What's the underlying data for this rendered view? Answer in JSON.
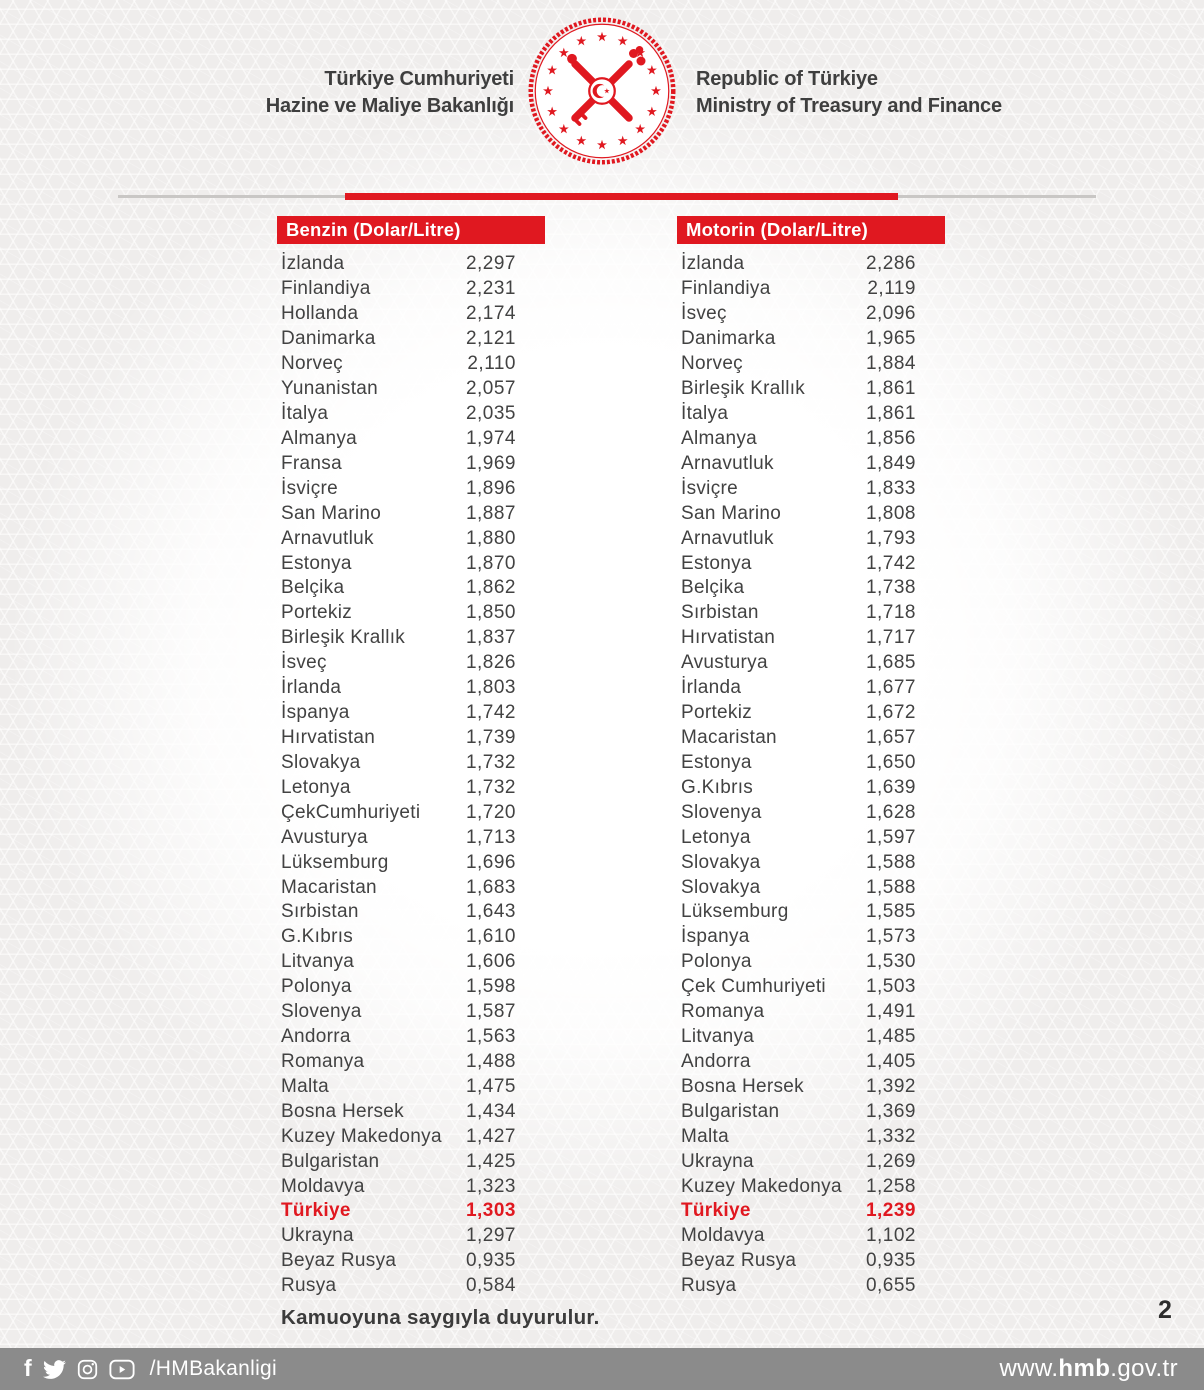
{
  "header": {
    "org_tr_line1": "Türkiye Cumhuriyeti",
    "org_tr_line2": "Hazine ve Maliye Bakanlığı",
    "org_en_line1": "Republic of Türkiye",
    "org_en_line2": "Ministry of Treasury and Finance",
    "emblem_icon": "ministry-emblem-icon"
  },
  "colors": {
    "accent_red": "#e01820",
    "footer_gray": "#8b8b8b",
    "text_dark": "#3e3e3e"
  },
  "tables": {
    "benzin": {
      "title": "Benzin (Dolar/Litre)",
      "rows": [
        {
          "country": "İzlanda",
          "value": "2,297",
          "highlight": false
        },
        {
          "country": "Finlandiya",
          "value": "2,231",
          "highlight": false
        },
        {
          "country": "Hollanda",
          "value": "2,174",
          "highlight": false
        },
        {
          "country": "Danimarka",
          "value": "2,121",
          "highlight": false
        },
        {
          "country": "Norveç",
          "value": "2,110",
          "highlight": false
        },
        {
          "country": "Yunanistan",
          "value": "2,057",
          "highlight": false
        },
        {
          "country": "İtalya",
          "value": "2,035",
          "highlight": false
        },
        {
          "country": "Almanya",
          "value": "1,974",
          "highlight": false
        },
        {
          "country": "Fransa",
          "value": "1,969",
          "highlight": false
        },
        {
          "country": "İsviçre",
          "value": "1,896",
          "highlight": false
        },
        {
          "country": "San Marino",
          "value": "1,887",
          "highlight": false
        },
        {
          "country": "Arnavutluk",
          "value": "1,880",
          "highlight": false
        },
        {
          "country": "Estonya",
          "value": "1,870",
          "highlight": false
        },
        {
          "country": "Belçika",
          "value": "1,862",
          "highlight": false
        },
        {
          "country": "Portekiz",
          "value": "1,850",
          "highlight": false
        },
        {
          "country": "Birleşik Krallık",
          "value": "1,837",
          "highlight": false
        },
        {
          "country": "İsveç",
          "value": "1,826",
          "highlight": false
        },
        {
          "country": "İrlanda",
          "value": "1,803",
          "highlight": false
        },
        {
          "country": "İspanya",
          "value": "1,742",
          "highlight": false
        },
        {
          "country": "Hırvatistan",
          "value": "1,739",
          "highlight": false
        },
        {
          "country": "Slovakya",
          "value": "1,732",
          "highlight": false
        },
        {
          "country": "Letonya",
          "value": "1,732",
          "highlight": false
        },
        {
          "country": "ÇekCumhuriyeti",
          "value": "1,720",
          "highlight": false
        },
        {
          "country": "Avusturya",
          "value": "1,713",
          "highlight": false
        },
        {
          "country": "Lüksemburg",
          "value": "1,696",
          "highlight": false
        },
        {
          "country": "Macaristan",
          "value": "1,683",
          "highlight": false
        },
        {
          "country": "Sırbistan",
          "value": "1,643",
          "highlight": false
        },
        {
          "country": "G.Kıbrıs",
          "value": "1,610",
          "highlight": false
        },
        {
          "country": "Litvanya",
          "value": "1,606",
          "highlight": false
        },
        {
          "country": "Polonya",
          "value": "1,598",
          "highlight": false
        },
        {
          "country": "Slovenya",
          "value": "1,587",
          "highlight": false
        },
        {
          "country": "Andorra",
          "value": "1,563",
          "highlight": false
        },
        {
          "country": "Romanya",
          "value": "1,488",
          "highlight": false
        },
        {
          "country": "Malta",
          "value": "1,475",
          "highlight": false
        },
        {
          "country": "Bosna Hersek",
          "value": "1,434",
          "highlight": false
        },
        {
          "country": "Kuzey Makedonya",
          "value": "1,427",
          "highlight": false
        },
        {
          "country": "Bulgaristan",
          "value": "1,425",
          "highlight": false
        },
        {
          "country": "Moldavya",
          "value": "1,323",
          "highlight": false
        },
        {
          "country": "Türkiye",
          "value": "1,303",
          "highlight": true
        },
        {
          "country": "Ukrayna",
          "value": "1,297",
          "highlight": false
        },
        {
          "country": "Beyaz Rusya",
          "value": "0,935",
          "highlight": false
        },
        {
          "country": "Rusya",
          "value": "0,584",
          "highlight": false
        }
      ]
    },
    "motorin": {
      "title": "Motorin (Dolar/Litre)",
      "rows": [
        {
          "country": "İzlanda",
          "value": "2,286",
          "highlight": false
        },
        {
          "country": "Finlandiya",
          "value": "2,119",
          "highlight": false
        },
        {
          "country": "İsveç",
          "value": "2,096",
          "highlight": false
        },
        {
          "country": "Danimarka",
          "value": "1,965",
          "highlight": false
        },
        {
          "country": "Norveç",
          "value": "1,884",
          "highlight": false
        },
        {
          "country": "Birleşik Krallık",
          "value": "1,861",
          "highlight": false
        },
        {
          "country": "İtalya",
          "value": "1,861",
          "highlight": false
        },
        {
          "country": "Almanya",
          "value": "1,856",
          "highlight": false
        },
        {
          "country": "Arnavutluk",
          "value": "1,849",
          "highlight": false
        },
        {
          "country": "İsviçre",
          "value": "1,833",
          "highlight": false
        },
        {
          "country": "San Marino",
          "value": "1,808",
          "highlight": false
        },
        {
          "country": "Arnavutluk",
          "value": "1,793",
          "highlight": false
        },
        {
          "country": "Estonya",
          "value": "1,742",
          "highlight": false
        },
        {
          "country": "Belçika",
          "value": "1,738",
          "highlight": false
        },
        {
          "country": "Sırbistan",
          "value": "1,718",
          "highlight": false
        },
        {
          "country": "Hırvatistan",
          "value": "1,717",
          "highlight": false
        },
        {
          "country": "Avusturya",
          "value": "1,685",
          "highlight": false
        },
        {
          "country": "İrlanda",
          "value": "1,677",
          "highlight": false
        },
        {
          "country": "Portekiz",
          "value": "1,672",
          "highlight": false
        },
        {
          "country": "Macaristan",
          "value": "1,657",
          "highlight": false
        },
        {
          "country": "Estonya",
          "value": "1,650",
          "highlight": false
        },
        {
          "country": "G.Kıbrıs",
          "value": "1,639",
          "highlight": false
        },
        {
          "country": "Slovenya",
          "value": "1,628",
          "highlight": false
        },
        {
          "country": "Letonya",
          "value": "1,597",
          "highlight": false
        },
        {
          "country": "Slovakya",
          "value": "1,588",
          "highlight": false
        },
        {
          "country": "Slovakya",
          "value": "1,588",
          "highlight": false
        },
        {
          "country": "Lüksemburg",
          "value": "1,585",
          "highlight": false
        },
        {
          "country": "İspanya",
          "value": "1,573",
          "highlight": false
        },
        {
          "country": "Polonya",
          "value": "1,530",
          "highlight": false
        },
        {
          "country": "Çek Cumhuriyeti",
          "value": "1,503",
          "highlight": false
        },
        {
          "country": "Romanya",
          "value": "1,491",
          "highlight": false
        },
        {
          "country": "Litvanya",
          "value": "1,485",
          "highlight": false
        },
        {
          "country": "Andorra",
          "value": "1,405",
          "highlight": false
        },
        {
          "country": "Bosna Hersek",
          "value": "1,392",
          "highlight": false
        },
        {
          "country": "Bulgaristan",
          "value": "1,369",
          "highlight": false
        },
        {
          "country": "Malta",
          "value": "1,332",
          "highlight": false
        },
        {
          "country": "Ukrayna",
          "value": "1,269",
          "highlight": false
        },
        {
          "country": "Kuzey Makedonya",
          "value": "1,258",
          "highlight": false
        },
        {
          "country": "Türkiye",
          "value": "1,239",
          "highlight": true
        },
        {
          "country": "Moldavya",
          "value": "1,102",
          "highlight": false
        },
        {
          "country": "Beyaz Rusya",
          "value": "0,935",
          "highlight": false
        },
        {
          "country": "Rusya",
          "value": "0,655",
          "highlight": false
        }
      ]
    }
  },
  "footer": {
    "closing_note": "Kamuoyuna saygıyla duyurulur.",
    "page_number": "2",
    "social_icons": [
      "facebook-icon",
      "twitter-icon",
      "instagram-icon",
      "youtube-icon"
    ],
    "facebook_glyph": "f",
    "social_handle": "/HMBakanligi",
    "website_prefix": "www.",
    "website_bold": "hmb",
    "website_suffix": ".gov.tr"
  }
}
